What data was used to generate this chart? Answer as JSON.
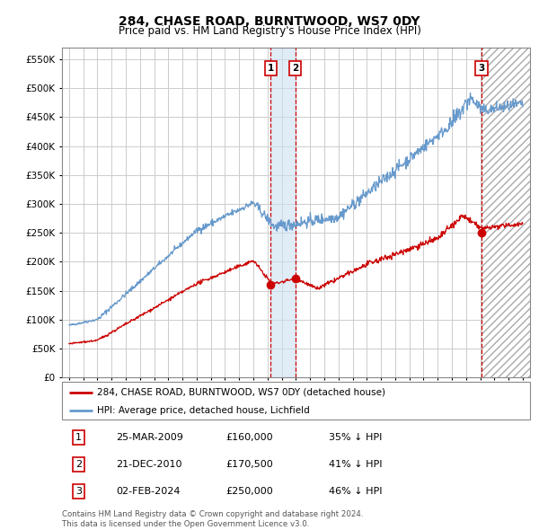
{
  "title": "284, CHASE ROAD, BURNTWOOD, WS7 0DY",
  "subtitle": "Price paid vs. HM Land Registry's House Price Index (HPI)",
  "legend_line1": "284, CHASE ROAD, BURNTWOOD, WS7 0DY (detached house)",
  "legend_line2": "HPI: Average price, detached house, Lichfield",
  "transactions": [
    {
      "num": 1,
      "date": "25-MAR-2009",
      "price": 160000,
      "price_str": "£160,000",
      "pct": "35% ↓ HPI",
      "x_year": 2009.23
    },
    {
      "num": 2,
      "date": "21-DEC-2010",
      "price": 170500,
      "price_str": "£170,500",
      "pct": "41% ↓ HPI",
      "x_year": 2010.97
    },
    {
      "num": 3,
      "date": "02-FEB-2024",
      "price": 250000,
      "price_str": "£250,000",
      "pct": "46% ↓ HPI",
      "x_year": 2024.09
    }
  ],
  "footnote1": "Contains HM Land Registry data © Crown copyright and database right 2024.",
  "footnote2": "This data is licensed under the Open Government Licence v3.0.",
  "red_color": "#cc0000",
  "blue_color": "#6699cc",
  "grid_color": "#cccccc",
  "hatch_color": "#aaaaaa",
  "xlim": [
    1994.5,
    2027.5
  ],
  "ylim": [
    0,
    570000
  ],
  "future_x": 2024.09,
  "band_x1": 2009.23,
  "band_x2": 2010.97
}
